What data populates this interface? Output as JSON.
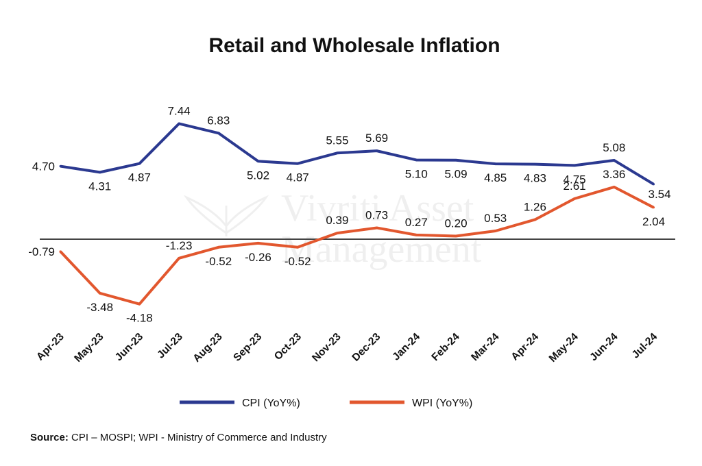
{
  "watermark": {
    "line1": "Vivriti Asset",
    "line2": "Management"
  },
  "source": {
    "label": "Source:",
    "text": " CPI – MOSPI; WPI - Ministry of Commerce and Industry"
  },
  "chart_data": {
    "type": "line",
    "title": "Retail and Wholesale Inflation",
    "categories": [
      "Apr-23",
      "May-23",
      "Jun-23",
      "Jul-23",
      "Aug-23",
      "Sep-23",
      "Oct-23",
      "Nov-23",
      "Dec-23",
      "Jan-24",
      "Feb-24",
      "Mar-24",
      "Apr-24",
      "May-24",
      "Jun-24",
      "Jul-24"
    ],
    "series": [
      {
        "name": "CPI (YoY%)",
        "color": "#2b3990",
        "values": [
          4.7,
          4.31,
          4.87,
          7.44,
          6.83,
          5.02,
          4.87,
          5.55,
          5.69,
          5.1,
          5.09,
          4.85,
          4.83,
          4.75,
          5.08,
          3.54
        ],
        "labels": [
          "4.70",
          "4.31",
          "4.87",
          "7.44",
          "6.83",
          "5.02",
          "4.87",
          "5.55",
          "5.69",
          "5.10",
          "5.09",
          "4.85",
          "4.83",
          "4.75",
          "5.08",
          "3.54"
        ]
      },
      {
        "name": "WPI (YoY%)",
        "color": "#e2572e",
        "values": [
          -0.79,
          -3.48,
          -4.18,
          -1.23,
          -0.52,
          -0.26,
          -0.52,
          0.39,
          0.73,
          0.27,
          0.2,
          0.53,
          1.26,
          2.61,
          3.36,
          2.04
        ],
        "labels": [
          "-0.79",
          "-3.48",
          "-4.18",
          "-1.23",
          "-0.52",
          "-0.26",
          "-0.52",
          "0.39",
          "0.73",
          "0.27",
          "0.20",
          "0.53",
          "1.26",
          "2.61",
          "3.36",
          "2.04"
        ]
      }
    ],
    "zero_line": true,
    "grid": false,
    "legend_position": "bottom"
  }
}
